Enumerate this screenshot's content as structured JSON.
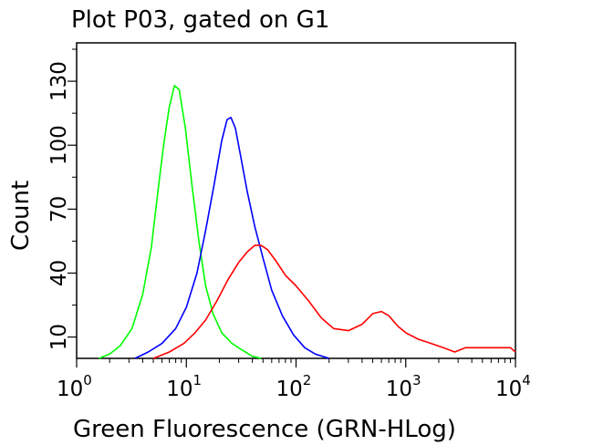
{
  "chart_data": {
    "type": "line",
    "title": "Plot P03, gated on G1",
    "xlabel": "Green Fluorescence (GRN-HLog)",
    "ylabel": "Count",
    "x_scale": "log",
    "xlim": [
      1,
      10000
    ],
    "ylim": [
      0,
      148
    ],
    "x_ticks": [
      {
        "base": "10",
        "exp": "0",
        "value": 1
      },
      {
        "base": "10",
        "exp": "1",
        "value": 10
      },
      {
        "base": "10",
        "exp": "2",
        "value": 100
      },
      {
        "base": "10",
        "exp": "3",
        "value": 1000
      },
      {
        "base": "10",
        "exp": "4",
        "value": 10000
      }
    ],
    "y_ticks": [
      "10",
      "40",
      "70",
      "100",
      "130"
    ],
    "y_tick_values": [
      10,
      40,
      70,
      100,
      130
    ],
    "grid": false,
    "legend": "none",
    "series": [
      {
        "color": "#00ff00",
        "x": [
          1.6,
          2.0,
          2.5,
          3.2,
          4.0,
          4.8,
          5.5,
          6.2,
          7.0,
          7.8,
          8.6,
          9.8,
          11.2,
          13.0,
          15.0,
          17.5,
          21.0,
          26.0,
          32.0,
          40.0,
          48.0
        ],
        "y": [
          0,
          2,
          6,
          14,
          30,
          52,
          78,
          100,
          118,
          128,
          126,
          108,
          82,
          55,
          34,
          21,
          12,
          7,
          4,
          1,
          0
        ]
      },
      {
        "color": "#0000ff",
        "x": [
          3.4,
          4.5,
          6.0,
          8.0,
          10.0,
          12.5,
          15.0,
          18.0,
          21.0,
          23.5,
          25.5,
          28.0,
          31.0,
          36.0,
          42.0,
          50.0,
          60.0,
          75.0,
          95.0,
          120.0,
          150.0,
          200.0
        ],
        "y": [
          0,
          3,
          7,
          14,
          24,
          40,
          60,
          82,
          102,
          112,
          113,
          108,
          96,
          78,
          62,
          47,
          32,
          20,
          11,
          5,
          2,
          0
        ]
      },
      {
        "color": "#ff0000",
        "x": [
          5.0,
          7.0,
          9.5,
          12.0,
          15.0,
          19.0,
          24.0,
          30.0,
          36.0,
          42.0,
          48.0,
          55.0,
          65.0,
          80.0,
          100.0,
          130.0,
          170.0,
          220.0,
          300.0,
          400.0,
          500.0,
          600.0,
          700.0,
          850.0,
          1000.0,
          1300.0,
          1700.0,
          2200.0,
          2800.0,
          3500.0,
          5000.0,
          6000.0,
          7000.0,
          8000.0,
          9000.0,
          10000.0
        ],
        "y": [
          0,
          3,
          7,
          12,
          18,
          27,
          37,
          45,
          50,
          53,
          53,
          51,
          46,
          39,
          34,
          27,
          19,
          14,
          13,
          16,
          21,
          22,
          20,
          15,
          12,
          9,
          7,
          5,
          3,
          5,
          5,
          5,
          5,
          5,
          5,
          3
        ]
      }
    ]
  }
}
